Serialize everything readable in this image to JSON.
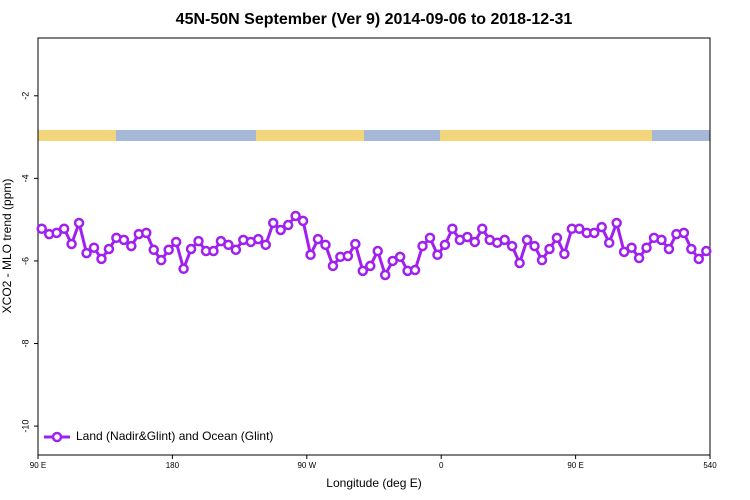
{
  "chart_data": {
    "type": "line",
    "title": "45N-50N September (Ver 9)   2014-09-06 to 2018-12-31",
    "xlabel": "Longitude (deg E)",
    "ylabel": "XCO2 - MLO trend (ppm)",
    "xlim": [
      90,
      540
    ],
    "xticks": [
      {
        "value": 90,
        "label": "90 E"
      },
      180,
      {
        "value": 270,
        "label": "90 W"
      },
      {
        "value": 360,
        "label": "0"
      },
      {
        "value": 450,
        "label": "90 E"
      },
      540
    ],
    "ylim": [
      -10.7,
      -0.6
    ],
    "yticks": [
      -2,
      -4,
      -6,
      -8,
      -10
    ],
    "legend": "bottom-left",
    "x": [
      92.5,
      97.5,
      102.5,
      107.5,
      112.5,
      117.5,
      122.5,
      127.5,
      132.5,
      137.5,
      142.5,
      147.5,
      152.5,
      157.5,
      162.5,
      167.5,
      172.5,
      177.5,
      182.5,
      187.5,
      192.5,
      197.5,
      202.5,
      207.5,
      212.5,
      217.5,
      222.5,
      227.5,
      232.5,
      237.5,
      242.5,
      247.5,
      252.5,
      257.5,
      262.5,
      267.5,
      272.5,
      277.5,
      282.5,
      287.5,
      292.5,
      297.5,
      302.5,
      307.5,
      312.5,
      317.5,
      322.5,
      327.5,
      332.5,
      337.5,
      342.5,
      347.5,
      352.5,
      357.5,
      362.5,
      367.5,
      372.5,
      377.5,
      382.5,
      387.5,
      392.5,
      397.5,
      402.5,
      407.5,
      412.5,
      417.5,
      422.5,
      427.5,
      432.5,
      437.5,
      442.5,
      447.5,
      452.5,
      457.5,
      462.5,
      467.5,
      472.5,
      477.5,
      482.5,
      487.5,
      492.5,
      497.5,
      502.5,
      507.5,
      512.5,
      517.5,
      522.5,
      527.5,
      532.5,
      537.5
    ],
    "series": [
      {
        "name": "Land (Nadir&Glint) and Ocean (Glint)",
        "color": "#a020f0",
        "values": [
          -5.22,
          -5.35,
          -5.32,
          -5.22,
          -5.59,
          -5.08,
          -5.81,
          -5.68,
          -5.95,
          -5.71,
          -5.44,
          -5.49,
          -5.64,
          -5.35,
          -5.32,
          -5.73,
          -5.98,
          -5.73,
          -5.54,
          -6.19,
          -5.71,
          -5.52,
          -5.76,
          -5.76,
          -5.52,
          -5.61,
          -5.73,
          -5.49,
          -5.54,
          -5.47,
          -5.61,
          -5.08,
          -5.25,
          -5.13,
          -4.91,
          -5.03,
          -5.85,
          -5.47,
          -5.61,
          -6.12,
          -5.9,
          -5.88,
          -5.59,
          -6.24,
          -6.12,
          -5.76,
          -6.34,
          -6.0,
          -5.9,
          -6.24,
          -6.22,
          -5.64,
          -5.44,
          -5.85,
          -5.61,
          -5.22,
          -5.49,
          -5.42,
          -5.54,
          -5.22,
          -5.49,
          -5.56,
          -5.49,
          -5.64,
          -6.05,
          -5.49,
          -5.64,
          -5.98,
          -5.71,
          -5.44,
          -5.83,
          -5.22,
          -5.22,
          -5.32,
          -5.32,
          -5.18,
          -5.56,
          -5.08,
          -5.78,
          -5.68,
          -5.93,
          -5.68,
          -5.44,
          -5.49,
          -5.71,
          -5.35,
          -5.32,
          -5.71,
          -5.95,
          -5.76
        ]
      }
    ]
  }
}
